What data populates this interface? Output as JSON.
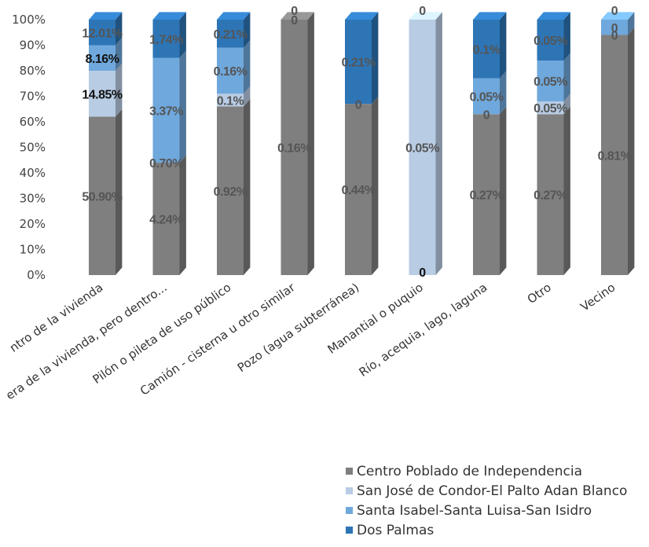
{
  "chart_data": {
    "type": "bar",
    "stacked": true,
    "percent": true,
    "categories": [
      "Dentro de la vivienda",
      "Fuera de la vivienda, pero dentro...",
      "Pilón o pileta de uso público",
      "Camión - cisterna u otro similar",
      "Pozo (agua subterránea)",
      "Manantial o puquio",
      "Río, acequia, lago, laguna",
      "Otro",
      "Vecino"
    ],
    "category_ticks": [
      "ntro de la vivienda",
      "era de la vivienda, pero dentro...",
      "Pilón o pileta de uso público",
      "Camión - cisterna u otro similar",
      "Pozo (agua subterránea)",
      "Manantial o puquio",
      "Río, acequia, lago, laguna",
      "Otro",
      "Vecino"
    ],
    "y_ticks": [
      "0%",
      "10%",
      "20%",
      "30%",
      "40%",
      "50%",
      "60%",
      "70%",
      "80%",
      "90%",
      "100%"
    ],
    "ylim": [
      0,
      100
    ],
    "legend_position": "bottom-right",
    "series": [
      {
        "name": "Centro Poblado de Independencia",
        "color": "#7f7f7f",
        "percent_of_bar": [
          62,
          44,
          66,
          100,
          67,
          0,
          63,
          63,
          94
        ],
        "labels": [
          "50.90%",
          "4.24%",
          "0.92%",
          "0.16%",
          "0.44%",
          "0",
          "0.27%",
          "0.27%",
          "0.81%"
        ]
      },
      {
        "name": "San José de Condor-El Palto Adan Blanco",
        "color": "#b8cce4",
        "percent_of_bar": [
          18,
          0,
          5,
          0,
          0,
          100,
          0,
          5,
          0
        ],
        "labels": [
          "14.85%",
          "0.70%",
          "0.1%",
          "0",
          "",
          "0.05%",
          "0",
          "0.05%",
          "0"
        ]
      },
      {
        "name": "Santa Isabel-Santa Luisa-San Isidro",
        "color": "#6fa8dc",
        "percent_of_bar": [
          10,
          41,
          18,
          0,
          0,
          0,
          14,
          16,
          6
        ],
        "labels": [
          "8.16%",
          "3.37%",
          "0.16%",
          "",
          "0",
          "",
          "0.05%",
          "0.05%",
          "0"
        ]
      },
      {
        "name": "Dos Palmas",
        "color": "#2e75b6",
        "percent_of_bar": [
          10,
          15,
          11,
          0,
          33,
          0,
          23,
          16,
          0
        ],
        "labels": [
          "12.01%",
          "1.74%",
          "0.21%",
          "0",
          "0.21%",
          "0",
          "0.1%",
          "0.05%",
          "0"
        ]
      }
    ]
  }
}
